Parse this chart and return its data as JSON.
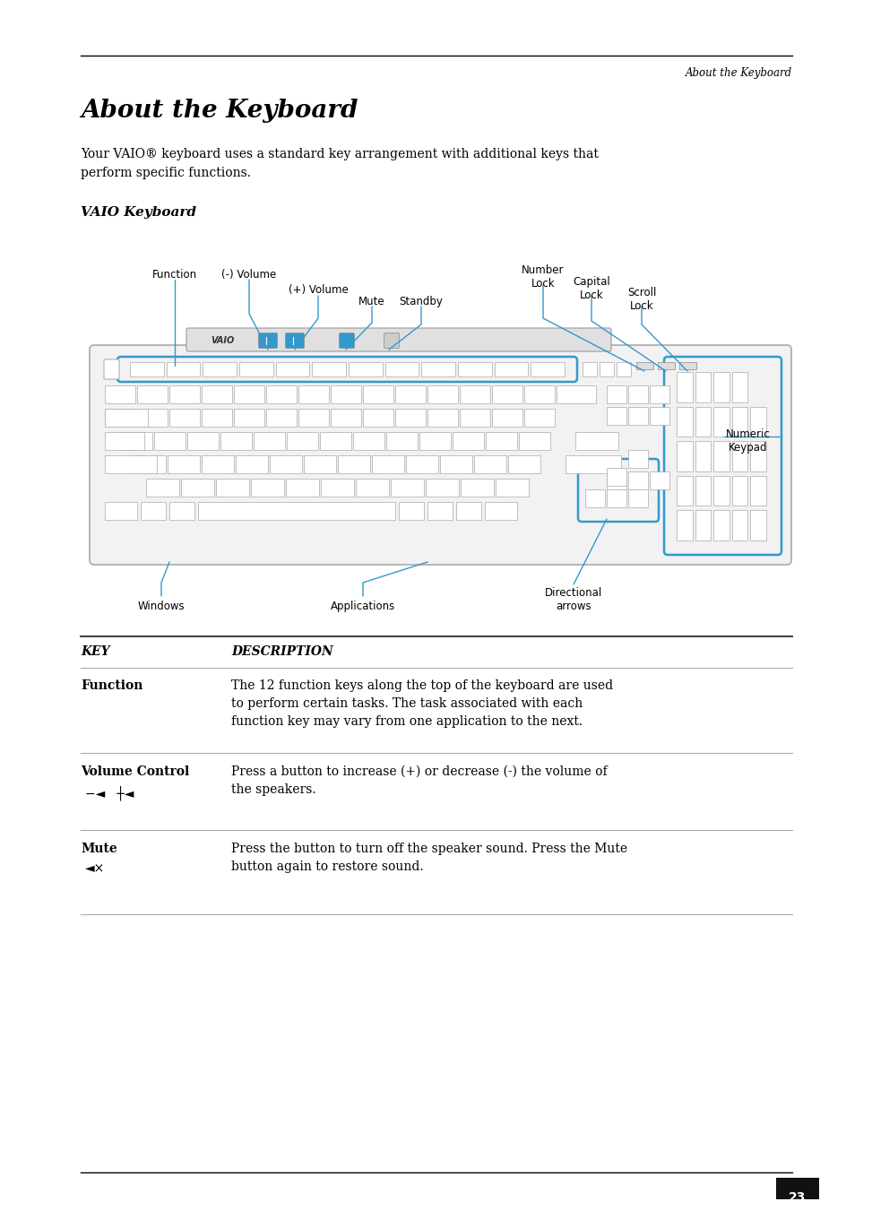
{
  "page_header_right": "About the Keyboard",
  "page_title": "About the Keyboard",
  "page_body": "Your VAIO® keyboard uses a standard key arrangement with additional keys that\nperform specific functions.",
  "section_title": "VAIO Keyboard",
  "table_header_key": "KEY",
  "table_header_desc": "DESCRIPTION",
  "table_rows": [
    {
      "key": "Function",
      "key_sub": "",
      "desc": "The 12 function keys along the top of the keyboard are used\nto perform certain tasks. The task associated with each\nfunction key may vary from one application to the next."
    },
    {
      "key": "Volume Control",
      "key_sub": "−◄    ┼◄",
      "desc": "Press a button to increase (+) or decrease (-) the volume of\nthe speakers."
    },
    {
      "key": "Mute",
      "key_sub": "◄×",
      "desc": "Press the button to turn off the speaker sound. Press the Mute\nbutton again to restore sound."
    }
  ],
  "page_number": "23",
  "bg_color": "#ffffff",
  "text_color": "#000000",
  "blue_color": "#3399cc",
  "label_font_size": 8.5,
  "body_font_size": 10
}
